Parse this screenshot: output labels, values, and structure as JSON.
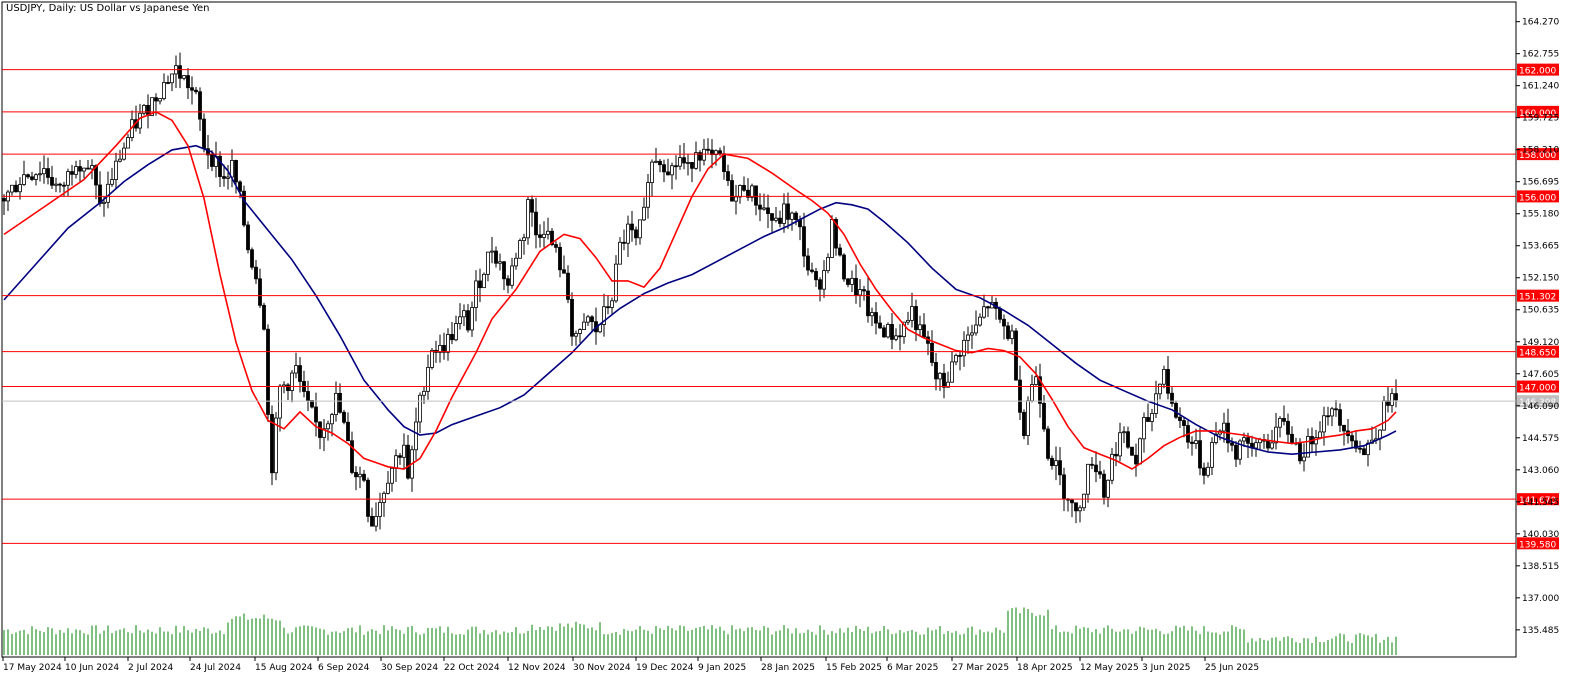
{
  "window": {
    "title": "USDJPY, Daily:  US Dollar vs Japanese Yen"
  },
  "chart_data": {
    "type": "candlestick",
    "symbol": "USDJPY",
    "timeframe": "Daily",
    "description": "US Dollar vs Japanese Yen",
    "ylim": [
      134.2,
      165.2
    ],
    "y_ticks": [
      "164.270",
      "162.755",
      "161.240",
      "159.725",
      "158.210",
      "156.695",
      "155.180",
      "153.665",
      "152.150",
      "150.635",
      "149.120",
      "147.605",
      "146.090",
      "144.575",
      "143.060",
      "141.545",
      "140.030",
      "138.515",
      "137.000",
      "135.485"
    ],
    "x_ticks": [
      "17 May 2024",
      "10 Jun 2024",
      "2 Jul 2024",
      "24 Jul 2024",
      "15 Aug 2024",
      "6 Sep 2024",
      "30 Sep 2024",
      "22 Oct 2024",
      "12 Nov 2024",
      "30 Nov 2024",
      "19 Dec 2024",
      "9 Jan 2025",
      "28 Jan 2025",
      "15 Feb 2025",
      "6 Mar 2025",
      "27 Mar 2025",
      "18 Apr 2025",
      "12 May 2025",
      "3 Jun 2025",
      "25 Jun 2025"
    ],
    "horizontal_levels": [
      {
        "value": 162.0,
        "label": "162.000",
        "color": "#ff0000"
      },
      {
        "value": 160.0,
        "label": "160.000",
        "color": "#ff0000"
      },
      {
        "value": 158.0,
        "label": "158.000",
        "color": "#ff0000"
      },
      {
        "value": 156.0,
        "label": "156.000",
        "color": "#ff0000"
      },
      {
        "value": 151.302,
        "label": "151.302",
        "color": "#ff0000"
      },
      {
        "value": 148.65,
        "label": "148.650",
        "color": "#ff0000"
      },
      {
        "value": 147.0,
        "label": "147.000",
        "color": "#ff0000"
      },
      {
        "value": 141.67,
        "label": "141.670",
        "color": "#ff0000"
      },
      {
        "value": 139.58,
        "label": "139.580",
        "color": "#ff0000"
      }
    ],
    "current_price": {
      "value": 146.308,
      "label": "146.308",
      "color": "#c0c0c0"
    },
    "close_path": [
      [
        0,
        155.9
      ],
      [
        5,
        157.0
      ],
      [
        10,
        157.3
      ],
      [
        14,
        156.2
      ],
      [
        18,
        157.8
      ],
      [
        22,
        157.2
      ],
      [
        24,
        155.4
      ],
      [
        27,
        156.9
      ],
      [
        29,
        157.9
      ],
      [
        32,
        159.2
      ],
      [
        35,
        160.0
      ],
      [
        38,
        160.8
      ],
      [
        41,
        161.6
      ],
      [
        43,
        162.0
      ],
      [
        46,
        161.3
      ],
      [
        48,
        160.6
      ],
      [
        50,
        158.4
      ],
      [
        53,
        157.6
      ],
      [
        55,
        156.8
      ],
      [
        57,
        157.4
      ],
      [
        59,
        155.8
      ],
      [
        61,
        153.6
      ],
      [
        63,
        152.3
      ],
      [
        65,
        150.1
      ],
      [
        66,
        145.6
      ],
      [
        67,
        143.3
      ],
      [
        69,
        146.9
      ],
      [
        71,
        147.2
      ],
      [
        73,
        147.8
      ],
      [
        75,
        146.4
      ],
      [
        77,
        145.6
      ],
      [
        79,
        144.8
      ],
      [
        81,
        145.6
      ],
      [
        83,
        146.4
      ],
      [
        85,
        145.1
      ],
      [
        87,
        143.2
      ],
      [
        88,
        142.9
      ],
      [
        90,
        142.7
      ],
      [
        91,
        141.2
      ],
      [
        92,
        140.6
      ],
      [
        94,
        141.6
      ],
      [
        96,
        142.8
      ],
      [
        98,
        143.6
      ],
      [
        100,
        144.3
      ],
      [
        101,
        142.4
      ],
      [
        103,
        145.2
      ],
      [
        105,
        147.2
      ],
      [
        107,
        148.9
      ],
      [
        109,
        148.7
      ],
      [
        111,
        149.2
      ],
      [
        113,
        149.8
      ],
      [
        115,
        150.3
      ],
      [
        116,
        149.9
      ],
      [
        118,
        151.6
      ],
      [
        120,
        152.6
      ],
      [
        122,
        153.6
      ],
      [
        124,
        152.8
      ],
      [
        126,
        151.8
      ],
      [
        128,
        153.3
      ],
      [
        130,
        154.3
      ],
      [
        131,
        155.9
      ],
      [
        133,
        154.2
      ],
      [
        135,
        154.6
      ],
      [
        137,
        153.7
      ],
      [
        139,
        152.8
      ],
      [
        141,
        151.2
      ],
      [
        142,
        149.7
      ],
      [
        144,
        149.3
      ],
      [
        146,
        150.2
      ],
      [
        148,
        149.6
      ],
      [
        150,
        150.4
      ],
      [
        152,
        151.3
      ],
      [
        154,
        153.6
      ],
      [
        156,
        154.4
      ],
      [
        158,
        153.8
      ],
      [
        160,
        155.1
      ],
      [
        161,
        157.1
      ],
      [
        163,
        157.9
      ],
      [
        165,
        157.6
      ],
      [
        167,
        157.3
      ],
      [
        169,
        157.8
      ],
      [
        171,
        157.2
      ],
      [
        173,
        158.3
      ],
      [
        175,
        158.0
      ],
      [
        177,
        157.7
      ],
      [
        179,
        157.8
      ],
      [
        181,
        156.4
      ],
      [
        183,
        155.9
      ],
      [
        185,
        156.6
      ],
      [
        187,
        156.1
      ],
      [
        189,
        155.6
      ],
      [
        191,
        155.2
      ],
      [
        193,
        154.6
      ],
      [
        195,
        155.3
      ],
      [
        197,
        155.0
      ],
      [
        199,
        154.3
      ],
      [
        201,
        152.6
      ],
      [
        203,
        151.7
      ],
      [
        205,
        152.4
      ],
      [
        207,
        154.6
      ],
      [
        209,
        152.8
      ],
      [
        211,
        152.0
      ],
      [
        213,
        151.6
      ],
      [
        215,
        151.1
      ],
      [
        217,
        150.1
      ],
      [
        219,
        149.8
      ],
      [
        221,
        149.6
      ],
      [
        223,
        149.4
      ],
      [
        225,
        149.9
      ],
      [
        227,
        150.6
      ],
      [
        229,
        149.5
      ],
      [
        231,
        148.8
      ],
      [
        233,
        147.4
      ],
      [
        235,
        147.1
      ],
      [
        237,
        147.9
      ],
      [
        239,
        148.8
      ],
      [
        241,
        149.3
      ],
      [
        243,
        149.7
      ],
      [
        245,
        150.6
      ],
      [
        246,
        150.9
      ],
      [
        248,
        150.4
      ],
      [
        250,
        149.8
      ],
      [
        252,
        149.3
      ],
      [
        254,
        146.2
      ],
      [
        255,
        144.8
      ],
      [
        256,
        146.4
      ],
      [
        258,
        147.6
      ],
      [
        259,
        146.6
      ],
      [
        261,
        144.0
      ],
      [
        263,
        143.1
      ],
      [
        265,
        142.1
      ],
      [
        266,
        141.9
      ],
      [
        268,
        140.8
      ],
      [
        270,
        142.3
      ],
      [
        272,
        143.6
      ],
      [
        274,
        142.9
      ],
      [
        275,
        141.9
      ],
      [
        277,
        143.6
      ],
      [
        279,
        144.7
      ],
      [
        281,
        144.2
      ],
      [
        283,
        143.4
      ],
      [
        285,
        145.1
      ],
      [
        287,
        145.8
      ],
      [
        289,
        147.5
      ],
      [
        290,
        147.8
      ],
      [
        292,
        146.0
      ],
      [
        294,
        145.4
      ],
      [
        296,
        144.7
      ],
      [
        298,
        144.0
      ],
      [
        300,
        142.9
      ],
      [
        302,
        144.2
      ],
      [
        304,
        145.2
      ],
      [
        306,
        144.6
      ],
      [
        308,
        143.9
      ],
      [
        310,
        144.8
      ],
      [
        312,
        143.7
      ],
      [
        314,
        144.5
      ],
      [
        316,
        144.3
      ],
      [
        318,
        145.0
      ],
      [
        320,
        145.1
      ],
      [
        322,
        144.6
      ],
      [
        324,
        143.8
      ],
      [
        326,
        144.2
      ],
      [
        328,
        145.0
      ],
      [
        330,
        145.5
      ],
      [
        332,
        146.3
      ],
      [
        334,
        144.9
      ],
      [
        336,
        145.1
      ],
      [
        338,
        144.4
      ],
      [
        340,
        143.8
      ],
      [
        342,
        144.6
      ],
      [
        344,
        145.3
      ],
      [
        346,
        146.5
      ],
      [
        348,
        146.3
      ]
    ],
    "ma_red": {
      "name": "",
      "color": "#ff0000",
      "points": [
        [
          0,
          154.2
        ],
        [
          10,
          155.5
        ],
        [
          20,
          156.8
        ],
        [
          28,
          158.4
        ],
        [
          34,
          159.7
        ],
        [
          38,
          160.0
        ],
        [
          42,
          159.6
        ],
        [
          46,
          158.4
        ],
        [
          50,
          155.9
        ],
        [
          54,
          152.3
        ],
        [
          58,
          149.1
        ],
        [
          62,
          146.8
        ],
        [
          66,
          145.4
        ],
        [
          70,
          145.0
        ],
        [
          74,
          145.8
        ],
        [
          78,
          145.1
        ],
        [
          82,
          144.8
        ],
        [
          86,
          144.3
        ],
        [
          90,
          143.6
        ],
        [
          96,
          143.2
        ],
        [
          100,
          143.1
        ],
        [
          104,
          143.6
        ],
        [
          108,
          144.9
        ],
        [
          112,
          146.5
        ],
        [
          118,
          148.6
        ],
        [
          122,
          150.2
        ],
        [
          128,
          151.6
        ],
        [
          134,
          153.4
        ],
        [
          140,
          154.2
        ],
        [
          144,
          154.0
        ],
        [
          148,
          153.1
        ],
        [
          152,
          152.0
        ],
        [
          156,
          152.0
        ],
        [
          160,
          151.7
        ],
        [
          164,
          152.6
        ],
        [
          168,
          154.3
        ],
        [
          172,
          156.0
        ],
        [
          176,
          157.3
        ],
        [
          180,
          158.0
        ],
        [
          186,
          157.8
        ],
        [
          192,
          157.1
        ],
        [
          198,
          156.3
        ],
        [
          202,
          155.8
        ],
        [
          206,
          155.2
        ],
        [
          210,
          154.2
        ],
        [
          214,
          152.8
        ],
        [
          218,
          151.6
        ],
        [
          222,
          150.6
        ],
        [
          226,
          149.7
        ],
        [
          230,
          149.3
        ],
        [
          234,
          149.0
        ],
        [
          238,
          148.7
        ],
        [
          242,
          148.6
        ],
        [
          246,
          148.8
        ],
        [
          250,
          148.7
        ],
        [
          254,
          148.4
        ],
        [
          258,
          147.6
        ],
        [
          262,
          146.4
        ],
        [
          266,
          145.1
        ],
        [
          270,
          144.1
        ],
        [
          274,
          143.8
        ],
        [
          278,
          143.5
        ],
        [
          282,
          143.1
        ],
        [
          286,
          143.6
        ],
        [
          290,
          144.2
        ],
        [
          294,
          144.6
        ],
        [
          298,
          144.9
        ],
        [
          302,
          144.9
        ],
        [
          306,
          144.8
        ],
        [
          310,
          144.7
        ],
        [
          314,
          144.5
        ],
        [
          318,
          144.4
        ],
        [
          322,
          144.3
        ],
        [
          326,
          144.4
        ],
        [
          330,
          144.6
        ],
        [
          334,
          144.7
        ],
        [
          338,
          144.9
        ],
        [
          342,
          145.0
        ],
        [
          346,
          145.4
        ],
        [
          348,
          145.8
        ]
      ]
    },
    "ma_blue": {
      "name": "",
      "color": "#000080",
      "points": [
        [
          0,
          151.1
        ],
        [
          8,
          152.8
        ],
        [
          16,
          154.5
        ],
        [
          24,
          155.7
        ],
        [
          30,
          156.7
        ],
        [
          36,
          157.5
        ],
        [
          42,
          158.2
        ],
        [
          48,
          158.4
        ],
        [
          52,
          158.1
        ],
        [
          56,
          157.2
        ],
        [
          60,
          155.8
        ],
        [
          66,
          154.4
        ],
        [
          72,
          153.0
        ],
        [
          78,
          151.3
        ],
        [
          84,
          149.4
        ],
        [
          90,
          147.3
        ],
        [
          96,
          145.9
        ],
        [
          100,
          145.1
        ],
        [
          104,
          144.7
        ],
        [
          108,
          144.8
        ],
        [
          112,
          145.2
        ],
        [
          118,
          145.6
        ],
        [
          124,
          146.0
        ],
        [
          130,
          146.6
        ],
        [
          136,
          147.6
        ],
        [
          142,
          148.6
        ],
        [
          148,
          149.8
        ],
        [
          154,
          150.7
        ],
        [
          160,
          151.4
        ],
        [
          166,
          151.9
        ],
        [
          172,
          152.3
        ],
        [
          178,
          152.9
        ],
        [
          184,
          153.5
        ],
        [
          190,
          154.1
        ],
        [
          196,
          154.6
        ],
        [
          200,
          155.0
        ],
        [
          204,
          155.4
        ],
        [
          208,
          155.7
        ],
        [
          212,
          155.6
        ],
        [
          216,
          155.4
        ],
        [
          220,
          154.8
        ],
        [
          226,
          153.8
        ],
        [
          232,
          152.6
        ],
        [
          238,
          151.6
        ],
        [
          244,
          151.2
        ],
        [
          250,
          150.6
        ],
        [
          256,
          149.9
        ],
        [
          262,
          149.0
        ],
        [
          268,
          148.1
        ],
        [
          274,
          147.3
        ],
        [
          280,
          146.8
        ],
        [
          286,
          146.3
        ],
        [
          292,
          145.9
        ],
        [
          298,
          145.2
        ],
        [
          304,
          144.6
        ],
        [
          310,
          144.2
        ],
        [
          316,
          143.9
        ],
        [
          322,
          143.8
        ],
        [
          328,
          143.9
        ],
        [
          334,
          144.0
        ],
        [
          340,
          144.2
        ],
        [
          346,
          144.7
        ],
        [
          348,
          144.9
        ]
      ]
    }
  }
}
